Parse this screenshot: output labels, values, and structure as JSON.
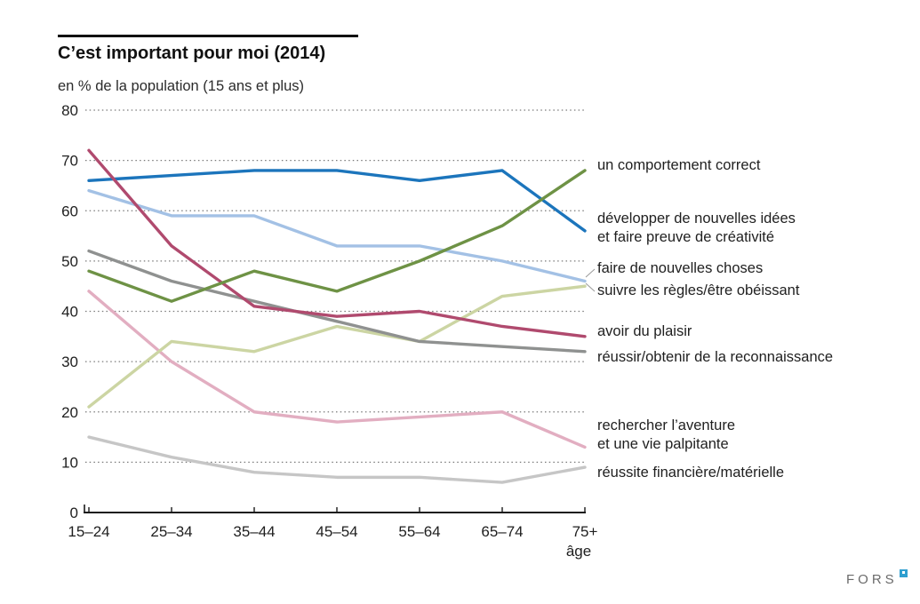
{
  "header": {
    "title": "C’est important pour moi (2014)",
    "subtitle": "en % de la population (15 ans et plus)"
  },
  "chart_data": {
    "type": "line",
    "categories": [
      "15–24",
      "25–34",
      "35–44",
      "45–54",
      "55–64",
      "65–74",
      "75+"
    ],
    "x_axis_label": "âge",
    "ylim": [
      0,
      80
    ],
    "yticks": [
      0,
      10,
      20,
      30,
      40,
      50,
      60,
      70,
      80
    ],
    "grid": "dotted-horizontal",
    "legend_position": "right",
    "series": [
      {
        "name": "un comportement correct",
        "color": "#6e9245",
        "values": [
          48,
          42,
          48,
          44,
          50,
          57,
          68
        ]
      },
      {
        "name": "développer de nouvelles idées et faire preuve de créativité",
        "color": "#1c75bc",
        "values": [
          66,
          67,
          68,
          68,
          66,
          68,
          56
        ]
      },
      {
        "name": "faire de nouvelles choses",
        "color": "#a3c1e5",
        "values": [
          64,
          59,
          59,
          53,
          53,
          50,
          46
        ]
      },
      {
        "name": "suivre les règles/être obéissant",
        "color": "#ccd5a3",
        "values": [
          21,
          34,
          32,
          37,
          34,
          43,
          45
        ]
      },
      {
        "name": "avoir du plaisir",
        "color": "#b04a6e",
        "values": [
          72,
          53,
          41,
          39,
          40,
          37,
          35
        ]
      },
      {
        "name": "réussir/obtenir de la reconnaissance",
        "color": "#8f9190",
        "values": [
          52,
          46,
          42,
          38,
          34,
          33,
          32
        ]
      },
      {
        "name": "rechercher l’aventure et une vie palpitante",
        "color": "#e2aec1",
        "values": [
          44,
          30,
          20,
          18,
          19,
          20,
          13
        ]
      },
      {
        "name": "réussite financière/matérielle",
        "color": "#c6c6c6",
        "values": [
          15,
          11,
          8,
          7,
          7,
          6,
          9
        ]
      }
    ]
  },
  "legend": {
    "items": [
      {
        "lines": [
          "un comportement correct"
        ]
      },
      {
        "lines": [
          "développer de nouvelles idées",
          "et faire preuve de créativité"
        ]
      },
      {
        "lines": [
          "faire de nouvelles choses"
        ]
      },
      {
        "lines": [
          "suivre les règles/être obéissant"
        ]
      },
      {
        "lines": [
          "avoir du plaisir"
        ]
      },
      {
        "lines": [
          "réussir/obtenir de la reconnaissance"
        ]
      },
      {
        "lines": [
          "rechercher l’aventure",
          "et une vie palpitante"
        ]
      },
      {
        "lines": [
          "réussite financière/matérielle"
        ]
      }
    ]
  },
  "footer": {
    "logo_text": "FORS"
  }
}
